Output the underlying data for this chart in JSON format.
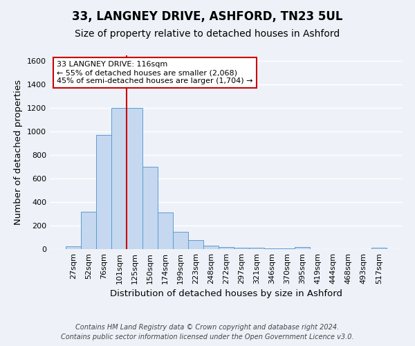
{
  "title": "33, LANGNEY DRIVE, ASHFORD, TN23 5UL",
  "subtitle": "Size of property relative to detached houses in Ashford",
  "xlabel": "Distribution of detached houses by size in Ashford",
  "ylabel": "Number of detached properties",
  "footer_line1": "Contains HM Land Registry data © Crown copyright and database right 2024.",
  "footer_line2": "Contains public sector information licensed under the Open Government Licence v3.0.",
  "categories": [
    "27sqm",
    "52sqm",
    "76sqm",
    "101sqm",
    "125sqm",
    "150sqm",
    "174sqm",
    "199sqm",
    "223sqm",
    "248sqm",
    "272sqm",
    "297sqm",
    "321sqm",
    "346sqm",
    "370sqm",
    "395sqm",
    "419sqm",
    "444sqm",
    "468sqm",
    "493sqm",
    "517sqm"
  ],
  "values": [
    25,
    320,
    970,
    1200,
    1200,
    700,
    310,
    150,
    75,
    30,
    20,
    12,
    10,
    5,
    3,
    15,
    2,
    2,
    2,
    2,
    10
  ],
  "bar_color": "#c5d8ef",
  "bar_edge_color": "#5b9bd5",
  "red_line_index": 4,
  "annotation_line1": "33 LANGNEY DRIVE: 116sqm",
  "annotation_line2": "← 55% of detached houses are smaller (2,068)",
  "annotation_line3": "45% of semi-detached houses are larger (1,704) →",
  "annotation_box_color": "white",
  "annotation_border_color": "#cc0000",
  "ylim": [
    0,
    1650
  ],
  "yticks": [
    0,
    200,
    400,
    600,
    800,
    1000,
    1200,
    1400,
    1600
  ],
  "bg_color": "#eef2f8",
  "grid_color": "white",
  "title_fontsize": 12,
  "subtitle_fontsize": 10,
  "label_fontsize": 9.5,
  "tick_fontsize": 8,
  "footer_fontsize": 7
}
